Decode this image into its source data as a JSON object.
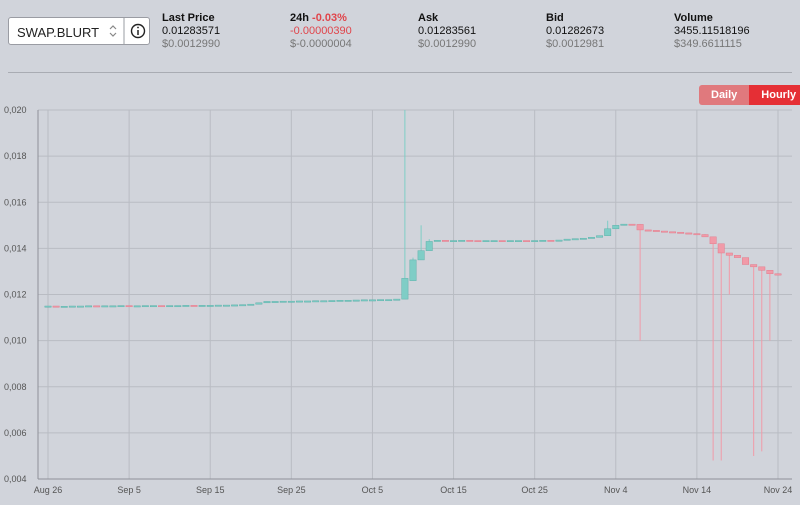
{
  "header": {
    "symbol": "SWAP.BLURT",
    "stats": [
      {
        "label": "Last Price",
        "value": "0.01283571",
        "usd": "$0.0012990"
      },
      {
        "label": "24h",
        "change": "-0.03%",
        "value": "-0.00000390",
        "usd": "$-0.0000004"
      },
      {
        "label": "Ask",
        "value": "0.01283561",
        "usd": "$0.0012990"
      },
      {
        "label": "Bid",
        "value": "0.01282673",
        "usd": "$0.0012981"
      },
      {
        "label": "Volume",
        "value": "3455.11518196",
        "usd": "$349.6611115"
      }
    ],
    "intervals": [
      "Daily",
      "Hourly"
    ],
    "active_interval": "Hourly"
  },
  "chart_data": {
    "type": "candlestick",
    "up_color": "#7fcdc6",
    "down_color": "#f19aa8",
    "grid": true,
    "x": [
      "Aug 26",
      "Aug 27",
      "Aug 28",
      "Aug 29",
      "Aug 30",
      "Aug 31",
      "Sep 1",
      "Sep 2",
      "Sep 3",
      "Sep 4",
      "Sep 5",
      "Sep 6",
      "Sep 7",
      "Sep 8",
      "Sep 9",
      "Sep 10",
      "Sep 11",
      "Sep 12",
      "Sep 13",
      "Sep 14",
      "Sep 15",
      "Sep 16",
      "Sep 17",
      "Sep 18",
      "Sep 19",
      "Sep 20",
      "Sep 21",
      "Sep 22",
      "Sep 23",
      "Sep 24",
      "Sep 25",
      "Sep 26",
      "Sep 27",
      "Sep 28",
      "Sep 29",
      "Sep 30",
      "Oct 1",
      "Oct 2",
      "Oct 3",
      "Oct 4",
      "Oct 5",
      "Oct 6",
      "Oct 7",
      "Oct 8",
      "Oct 9",
      "Oct 10",
      "Oct 11",
      "Oct 12",
      "Oct 13",
      "Oct 14",
      "Oct 15",
      "Oct 16",
      "Oct 17",
      "Oct 18",
      "Oct 19",
      "Oct 20",
      "Oct 21",
      "Oct 22",
      "Oct 23",
      "Oct 24",
      "Oct 25",
      "Oct 26",
      "Oct 27",
      "Oct 28",
      "Oct 29",
      "Oct 30",
      "Oct 31",
      "Nov 1",
      "Nov 2",
      "Nov 3",
      "Nov 4",
      "Nov 5",
      "Nov 6",
      "Nov 7",
      "Nov 8",
      "Nov 9",
      "Nov 10",
      "Nov 11",
      "Nov 12",
      "Nov 13",
      "Nov 14",
      "Nov 15",
      "Nov 16",
      "Nov 17",
      "Nov 18",
      "Nov 19",
      "Nov 20",
      "Nov 21",
      "Nov 22",
      "Nov 23",
      "Nov 24"
    ],
    "open": [
      0.0115,
      0.0115,
      0.01149,
      0.01149,
      0.0115,
      0.0115,
      0.01151,
      0.0115,
      0.01151,
      0.01151,
      0.01152,
      0.01151,
      0.01151,
      0.01152,
      0.01152,
      0.01151,
      0.01152,
      0.01152,
      0.01153,
      0.01152,
      0.01153,
      0.01153,
      0.01154,
      0.01154,
      0.01155,
      0.01156,
      0.01158,
      0.01164,
      0.0117,
      0.0117,
      0.01171,
      0.01171,
      0.01172,
      0.01172,
      0.01173,
      0.01173,
      0.01174,
      0.01175,
      0.01175,
      0.01176,
      0.01177,
      0.01177,
      0.01178,
      0.01178,
      0.0118,
      0.0126,
      0.0135,
      0.0139,
      0.0143,
      0.01435,
      0.01434,
      0.01434,
      0.01435,
      0.01434,
      0.01433,
      0.01434,
      0.01434,
      0.01433,
      0.01434,
      0.01434,
      0.01433,
      0.01434,
      0.01435,
      0.01434,
      0.01436,
      0.0144,
      0.01442,
      0.01444,
      0.01448,
      0.01455,
      0.01485,
      0.015,
      0.01505,
      0.01504,
      0.0148,
      0.01478,
      0.01475,
      0.01472,
      0.0147,
      0.01467,
      0.01464,
      0.0146,
      0.0145,
      0.0142,
      0.0138,
      0.0137,
      0.0136,
      0.0133,
      0.0132,
      0.01305,
      0.0129
    ],
    "close": [
      0.0115,
      0.01149,
      0.01149,
      0.0115,
      0.0115,
      0.01151,
      0.0115,
      0.01151,
      0.01151,
      0.01152,
      0.01151,
      0.01151,
      0.01152,
      0.01152,
      0.01151,
      0.01152,
      0.01152,
      0.01153,
      0.01152,
      0.01153,
      0.01153,
      0.01154,
      0.01154,
      0.01155,
      0.01156,
      0.01158,
      0.01164,
      0.0117,
      0.0117,
      0.01171,
      0.01171,
      0.01172,
      0.01172,
      0.01173,
      0.01173,
      0.01174,
      0.01175,
      0.01175,
      0.01176,
      0.01177,
      0.01177,
      0.01178,
      0.01178,
      0.0118,
      0.0127,
      0.0135,
      0.0139,
      0.0143,
      0.01435,
      0.01434,
      0.01434,
      0.01435,
      0.01434,
      0.01433,
      0.01434,
      0.01434,
      0.01433,
      0.01434,
      0.01434,
      0.01433,
      0.01434,
      0.01435,
      0.01434,
      0.01436,
      0.0144,
      0.01442,
      0.01444,
      0.01448,
      0.01455,
      0.01485,
      0.015,
      0.01505,
      0.01504,
      0.0148,
      0.01478,
      0.01475,
      0.01472,
      0.0147,
      0.01467,
      0.01464,
      0.0146,
      0.0145,
      0.0142,
      0.0138,
      0.0137,
      0.0136,
      0.0133,
      0.0132,
      0.01305,
      0.0129,
      0.01284
    ],
    "high": [
      0.0115,
      0.0115,
      0.01149,
      0.0115,
      0.0115,
      0.01151,
      0.01151,
      0.01151,
      0.01151,
      0.01152,
      0.01152,
      0.01151,
      0.01152,
      0.01152,
      0.01152,
      0.01152,
      0.01152,
      0.01153,
      0.01153,
      0.01153,
      0.01153,
      0.01154,
      0.01154,
      0.01155,
      0.01156,
      0.01158,
      0.01164,
      0.0117,
      0.0117,
      0.01171,
      0.01171,
      0.01172,
      0.01172,
      0.01173,
      0.01173,
      0.01174,
      0.01175,
      0.01175,
      0.01176,
      0.01177,
      0.01177,
      0.01178,
      0.01178,
      0.0118,
      0.02,
      0.0136,
      0.015,
      0.0144,
      0.01435,
      0.01435,
      0.01434,
      0.01435,
      0.01435,
      0.01434,
      0.01434,
      0.01434,
      0.01434,
      0.01434,
      0.01434,
      0.01434,
      0.01434,
      0.01435,
      0.01435,
      0.01436,
      0.0144,
      0.01442,
      0.01444,
      0.01448,
      0.01455,
      0.0152,
      0.015,
      0.01505,
      0.01505,
      0.01506,
      0.0148,
      0.01478,
      0.01475,
      0.01472,
      0.0147,
      0.01467,
      0.01464,
      0.01462,
      0.0145,
      0.0142,
      0.0138,
      0.0137,
      0.0136,
      0.0133,
      0.0132,
      0.01305,
      0.0129
    ],
    "low": [
      0.0115,
      0.01149,
      0.01149,
      0.01149,
      0.0115,
      0.0115,
      0.0115,
      0.0115,
      0.01151,
      0.01151,
      0.01151,
      0.01151,
      0.01151,
      0.01152,
      0.01151,
      0.01151,
      0.01152,
      0.01152,
      0.01152,
      0.01152,
      0.01153,
      0.01153,
      0.01154,
      0.01154,
      0.01155,
      0.01156,
      0.01158,
      0.01164,
      0.0117,
      0.0117,
      0.01171,
      0.01171,
      0.01172,
      0.01172,
      0.01173,
      0.01173,
      0.01174,
      0.01175,
      0.01175,
      0.01176,
      0.01177,
      0.01177,
      0.01178,
      0.01178,
      0.0118,
      0.0126,
      0.0135,
      0.0139,
      0.0143,
      0.01434,
      0.01434,
      0.01434,
      0.01434,
      0.01433,
      0.01433,
      0.01434,
      0.01433,
      0.01433,
      0.01434,
      0.01433,
      0.01433,
      0.01434,
      0.01434,
      0.01434,
      0.01436,
      0.0144,
      0.01442,
      0.01444,
      0.01448,
      0.01455,
      0.01485,
      0.015,
      0.01504,
      0.01,
      0.01478,
      0.01475,
      0.01472,
      0.0147,
      0.01467,
      0.01464,
      0.0146,
      0.0145,
      0.0048,
      0.0048,
      0.012,
      0.0136,
      0.0133,
      0.005,
      0.0052,
      0.01,
      0.01284
    ],
    "ylim": [
      0.004,
      0.02
    ],
    "yticks": [
      {
        "value": 0.004,
        "label": "0,004"
      },
      {
        "value": 0.006,
        "label": "0,006"
      },
      {
        "value": 0.008,
        "label": "0,008"
      },
      {
        "value": 0.01,
        "label": "0,010"
      },
      {
        "value": 0.012,
        "label": "0,012"
      },
      {
        "value": 0.014,
        "label": "0,014"
      },
      {
        "value": 0.016,
        "label": "0,016"
      },
      {
        "value": 0.018,
        "label": "0,018"
      },
      {
        "value": 0.02,
        "label": "0,020"
      }
    ],
    "xticks": [
      "Aug 26",
      "Sep 5",
      "Sep 15",
      "Sep 25",
      "Oct 5",
      "Oct 15",
      "Oct 25",
      "Nov 4",
      "Nov 14",
      "Nov 24"
    ]
  }
}
